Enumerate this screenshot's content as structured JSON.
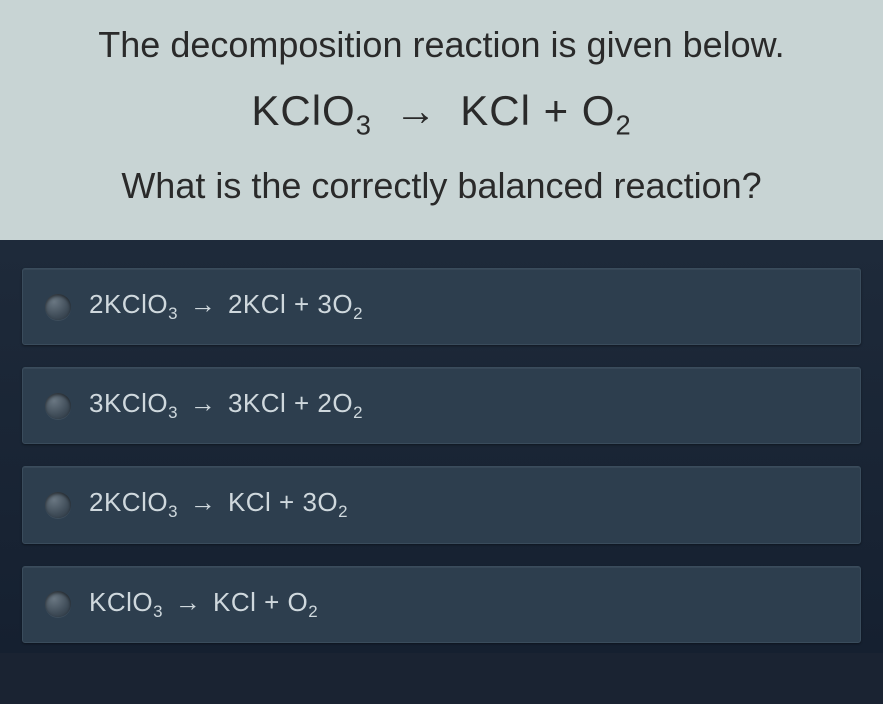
{
  "question": {
    "intro": "The decomposition reaction is given below.",
    "equation_html": "KClO<sub>3</sub> <span class='arrow'>→</span> KCl + O<sub>2</sub>",
    "ask": "What is the correctly balanced reaction?",
    "background_color": "#c8d4d4",
    "text_color": "#2a2a2a",
    "intro_fontsize": 36,
    "equation_fontsize": 42,
    "ask_fontsize": 36
  },
  "options_panel": {
    "background_color": "#1e2a3a",
    "option_background": "#2d3e4e",
    "option_border": "#3a4c5c",
    "option_text_color": "#cfd8dd",
    "option_fontsize": 26,
    "radio_color": "#3f4c58"
  },
  "options": [
    {
      "html": "2KClO<sub>3</sub> <span class='sm-arrow'>→</span> 2KCl + 3O<sub>2</sub>"
    },
    {
      "html": "3KClO<sub>3</sub> <span class='sm-arrow'>→</span> 3KCl + 2O<sub>2</sub>"
    },
    {
      "html": "2KClO<sub>3</sub> <span class='sm-arrow'>→</span> KCl + 3O<sub>2</sub>"
    },
    {
      "html": "KClO<sub>3</sub> <span class='sm-arrow'>→</span> KCl + O<sub>2</sub>"
    }
  ]
}
